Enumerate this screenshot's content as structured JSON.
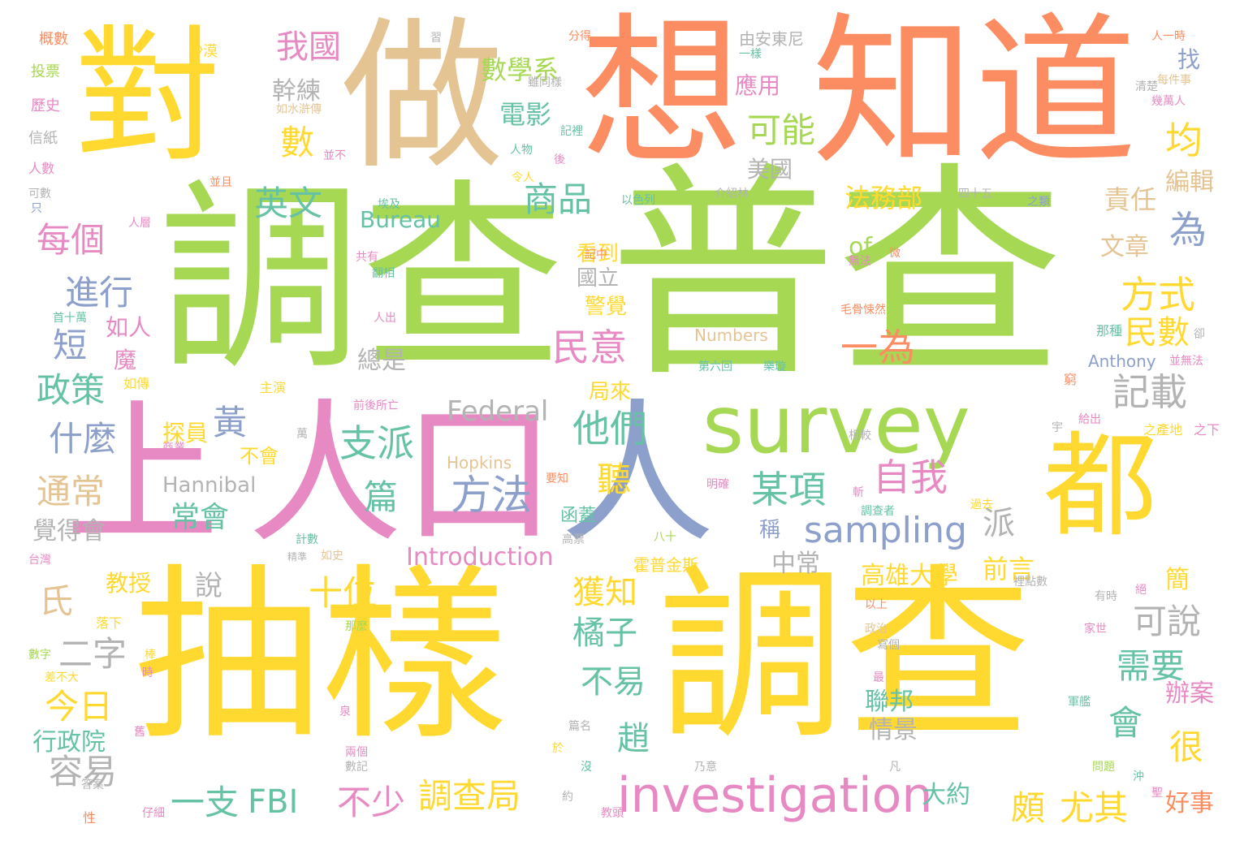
{
  "palette": {
    "green": "#a6d854",
    "yellow": "#ffd92f",
    "orange": "#fc8d62",
    "tan": "#e5c494",
    "pink": "#e78ac3",
    "teal": "#66c2a5",
    "blue": "#8da0cb",
    "gray": "#b3b3b3"
  },
  "words": [
    {
      "text": "普查",
      "color": "green"
    },
    {
      "text": "調查",
      "color": "green"
    },
    {
      "text": "抽樣",
      "color": "yellow"
    },
    {
      "text": "調查",
      "color": "yellow"
    },
    {
      "text": "想",
      "color": "orange"
    },
    {
      "text": "知道",
      "color": "orange"
    },
    {
      "text": "做",
      "color": "tan"
    },
    {
      "text": "對",
      "color": "yellow"
    },
    {
      "text": "上",
      "color": "pink"
    },
    {
      "text": "人口",
      "color": "pink"
    },
    {
      "text": "人",
      "color": "blue"
    },
    {
      "text": "survey",
      "color": "green"
    },
    {
      "text": "都",
      "color": "yellow"
    },
    {
      "text": "investigation",
      "color": "pink"
    },
    {
      "text": "sampling",
      "color": "blue"
    },
    {
      "text": "方法",
      "color": "blue"
    },
    {
      "text": "某項",
      "color": "teal"
    },
    {
      "text": "自我",
      "color": "pink"
    },
    {
      "text": "支派",
      "color": "teal"
    },
    {
      "text": "民意",
      "color": "pink"
    },
    {
      "text": "一為",
      "color": "orange"
    },
    {
      "text": "他們",
      "color": "teal"
    },
    {
      "text": "記載",
      "color": "gray"
    },
    {
      "text": "方式",
      "color": "yellow"
    },
    {
      "text": "民數",
      "color": "yellow"
    },
    {
      "text": "為",
      "color": "blue"
    },
    {
      "text": "均",
      "color": "yellow"
    },
    {
      "text": "商品",
      "color": "teal"
    },
    {
      "text": "可能",
      "color": "green"
    },
    {
      "text": "英文",
      "color": "teal"
    },
    {
      "text": "數",
      "color": "yellow"
    },
    {
      "text": "我國",
      "color": "pink"
    },
    {
      "text": "每個",
      "color": "pink"
    },
    {
      "text": "進行",
      "color": "blue"
    },
    {
      "text": "短",
      "color": "blue"
    },
    {
      "text": "政策",
      "color": "teal"
    },
    {
      "text": "什麼",
      "color": "blue"
    },
    {
      "text": "黃",
      "color": "blue"
    },
    {
      "text": "通常",
      "color": "tan"
    },
    {
      "text": "常會",
      "color": "teal"
    },
    {
      "text": "篇",
      "color": "teal"
    },
    {
      "text": "聽",
      "color": "yellow"
    },
    {
      "text": "十位",
      "color": "yellow"
    },
    {
      "text": "氏",
      "color": "tan"
    },
    {
      "text": "二字",
      "color": "gray"
    },
    {
      "text": "今日",
      "color": "yellow"
    },
    {
      "text": "容易",
      "color": "gray"
    },
    {
      "text": "一支",
      "color": "teal"
    },
    {
      "text": "FBI",
      "color": "teal"
    },
    {
      "text": "不少",
      "color": "pink"
    },
    {
      "text": "調查局",
      "color": "yellow"
    },
    {
      "text": "頗",
      "color": "yellow"
    },
    {
      "text": "尤其",
      "color": "yellow"
    },
    {
      "text": "很",
      "color": "yellow"
    },
    {
      "text": "會",
      "color": "teal"
    },
    {
      "text": "需要",
      "color": "teal"
    },
    {
      "text": "可說",
      "color": "gray"
    },
    {
      "text": "獲知",
      "color": "yellow"
    },
    {
      "text": "橘子",
      "color": "teal"
    },
    {
      "text": "不易",
      "color": "teal"
    },
    {
      "text": "趙",
      "color": "teal"
    },
    {
      "text": "派",
      "color": "gray"
    },
    {
      "text": "前言",
      "color": "yellow"
    },
    {
      "text": "責任",
      "color": "tan"
    },
    {
      "text": "文章",
      "color": "tan"
    },
    {
      "text": "編輯",
      "color": "tan"
    },
    {
      "text": "找",
      "color": "blue"
    },
    {
      "text": "數學系",
      "color": "green"
    },
    {
      "text": "電影",
      "color": "teal"
    },
    {
      "text": "法務部",
      "color": "yellow"
    },
    {
      "text": "應用",
      "color": "pink"
    },
    {
      "text": "美國",
      "color": "gray"
    },
    {
      "text": "幹練",
      "color": "gray"
    },
    {
      "text": "Bureau",
      "color": "teal"
    },
    {
      "text": "of",
      "color": "green"
    },
    {
      "text": "Federal",
      "color": "gray"
    },
    {
      "text": "Hannibal",
      "color": "gray"
    },
    {
      "text": "Hopkins",
      "color": "tan"
    },
    {
      "text": "Introduction",
      "color": "pink"
    },
    {
      "text": "Numbers",
      "color": "tan"
    },
    {
      "text": "Anthony",
      "color": "blue"
    },
    {
      "text": "探員",
      "color": "yellow"
    },
    {
      "text": "如人",
      "color": "pink"
    },
    {
      "text": "魔",
      "color": "pink"
    },
    {
      "text": "覺得會",
      "color": "gray"
    },
    {
      "text": "教授",
      "color": "yellow"
    },
    {
      "text": "說",
      "color": "gray"
    },
    {
      "text": "行政院",
      "color": "teal"
    },
    {
      "text": "高雄大學",
      "color": "yellow"
    },
    {
      "text": "中常",
      "color": "gray"
    },
    {
      "text": "國立",
      "color": "gray"
    },
    {
      "text": "警覺",
      "color": "yellow"
    },
    {
      "text": "看到",
      "color": "yellow"
    },
    {
      "text": "總是",
      "color": "gray"
    },
    {
      "text": "局來",
      "color": "yellow"
    },
    {
      "text": "辦案",
      "color": "pink"
    },
    {
      "text": "好事",
      "color": "orange"
    },
    {
      "text": "簡",
      "color": "yellow"
    },
    {
      "text": "聯邦",
      "color": "teal"
    },
    {
      "text": "情景",
      "color": "gray"
    },
    {
      "text": "大約",
      "color": "teal"
    },
    {
      "text": "稱",
      "color": "blue"
    },
    {
      "text": "不會",
      "color": "yellow"
    },
    {
      "text": "由安東尼",
      "color": "gray"
    },
    {
      "text": "霍普金斯",
      "color": "yellow"
    },
    {
      "text": "函蓋",
      "color": "teal"
    },
    {
      "text": "概數",
      "color": "orange"
    },
    {
      "text": "沙漠",
      "color": "yellow"
    },
    {
      "text": "投票",
      "color": "green"
    },
    {
      "text": "歷史",
      "color": "pink"
    },
    {
      "text": "信紙",
      "color": "gray"
    },
    {
      "text": "人數",
      "color": "pink"
    },
    {
      "text": "可數",
      "color": "gray"
    },
    {
      "text": "只",
      "color": "blue"
    },
    {
      "text": "人層",
      "color": "pink"
    },
    {
      "text": "首十萬",
      "color": "teal"
    },
    {
      "text": "如傳",
      "color": "yellow"
    },
    {
      "text": "主演",
      "color": "yellow"
    },
    {
      "text": "人出",
      "color": "pink"
    },
    {
      "text": "台灣",
      "color": "pink"
    },
    {
      "text": "計數",
      "color": "teal"
    },
    {
      "text": "精準",
      "color": "gray"
    },
    {
      "text": "如史",
      "color": "tan"
    },
    {
      "text": "落下",
      "color": "yellow"
    },
    {
      "text": "數字",
      "color": "green"
    },
    {
      "text": "差不大",
      "color": "yellow"
    },
    {
      "text": "仔細",
      "color": "pink"
    },
    {
      "text": "性",
      "color": "orange"
    },
    {
      "text": "答案",
      "color": "gray"
    },
    {
      "text": "兩個",
      "color": "pink"
    },
    {
      "text": "數記",
      "color": "gray"
    },
    {
      "text": "泉",
      "color": "pink"
    },
    {
      "text": "篇名",
      "color": "gray"
    },
    {
      "text": "乃意",
      "color": "gray"
    },
    {
      "text": "約",
      "color": "gray"
    },
    {
      "text": "教頭",
      "color": "pink"
    },
    {
      "text": "沒",
      "color": "teal"
    },
    {
      "text": "凡",
      "color": "gray"
    },
    {
      "text": "問題",
      "color": "green"
    },
    {
      "text": "沖",
      "color": "teal"
    },
    {
      "text": "聖",
      "color": "pink"
    },
    {
      "text": "軍艦",
      "color": "teal"
    },
    {
      "text": "最",
      "color": "pink"
    },
    {
      "text": "有時",
      "color": "gray"
    },
    {
      "text": "絕",
      "color": "pink"
    },
    {
      "text": "以上",
      "color": "orange"
    },
    {
      "text": "政治",
      "color": "tan"
    },
    {
      "text": "家世",
      "color": "pink"
    },
    {
      "text": "寫個",
      "color": "gray"
    },
    {
      "text": "裡點數",
      "color": "gray"
    },
    {
      "text": "之產地",
      "color": "yellow"
    },
    {
      "text": "之下",
      "color": "pink"
    },
    {
      "text": "給出",
      "color": "pink"
    },
    {
      "text": "宇",
      "color": "gray"
    },
    {
      "text": "相較",
      "color": "gray"
    },
    {
      "text": "第六回",
      "color": "teal"
    },
    {
      "text": "樂璇",
      "color": "teal"
    },
    {
      "text": "窮",
      "color": "orange"
    },
    {
      "text": "那種",
      "color": "teal"
    },
    {
      "text": "卻",
      "color": "gray"
    },
    {
      "text": "並無法",
      "color": "pink"
    },
    {
      "text": "毛骨悚然",
      "color": "orange"
    },
    {
      "text": "無法",
      "color": "pink"
    },
    {
      "text": "微",
      "color": "orange"
    },
    {
      "text": "四十五",
      "color": "gray"
    },
    {
      "text": "之類",
      "color": "blue"
    },
    {
      "text": "介紹林",
      "color": "gray"
    },
    {
      "text": "以色列",
      "color": "teal"
    },
    {
      "text": "埃及",
      "color": "teal"
    },
    {
      "text": "並且",
      "color": "orange"
    },
    {
      "text": "並不",
      "color": "pink"
    },
    {
      "text": "令人",
      "color": "yellow"
    },
    {
      "text": "後",
      "color": "pink"
    },
    {
      "text": "人物",
      "color": "teal"
    },
    {
      "text": "記裡",
      "color": "teal"
    },
    {
      "text": "雖同樣",
      "color": "gray"
    },
    {
      "text": "清楚",
      "color": "gray"
    },
    {
      "text": "一樣",
      "color": "teal"
    },
    {
      "text": "每件事",
      "color": "tan"
    },
    {
      "text": "人一時",
      "color": "orange"
    },
    {
      "text": "幾萬人",
      "color": "pink"
    },
    {
      "text": "分得",
      "color": "orange"
    },
    {
      "text": "習",
      "color": "gray"
    },
    {
      "text": "如水滸傳",
      "color": "tan"
    },
    {
      "text": "共有",
      "color": "pink"
    },
    {
      "text": "翻相",
      "color": "teal"
    },
    {
      "text": "記中",
      "color": "orange"
    },
    {
      "text": "前後所亡",
      "color": "pink"
    },
    {
      "text": "萬",
      "color": "gray"
    },
    {
      "text": "商業",
      "color": "pink"
    },
    {
      "text": "要知",
      "color": "orange"
    },
    {
      "text": "高票",
      "color": "gray"
    },
    {
      "text": "明確",
      "color": "pink"
    },
    {
      "text": "斬",
      "color": "pink"
    },
    {
      "text": "調查者",
      "color": "teal"
    },
    {
      "text": "過去",
      "color": "yellow"
    },
    {
      "text": "八十",
      "color": "green"
    },
    {
      "text": "那麼",
      "color": "green"
    },
    {
      "text": "棒",
      "color": "yellow"
    },
    {
      "text": "時",
      "color": "pink"
    },
    {
      "text": "於",
      "color": "yellow"
    },
    {
      "text": "舊",
      "color": "pink"
    }
  ]
}
